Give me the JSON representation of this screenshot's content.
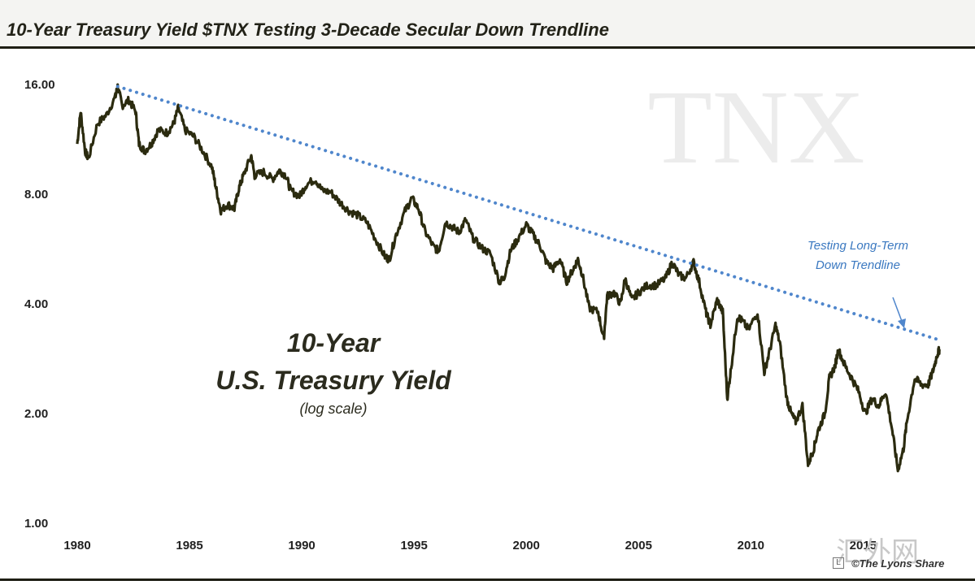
{
  "chart_data": {
    "type": "line",
    "title": "10-Year Treasury Yield $TNX Testing 3-Decade Secular Down Trendline",
    "y_scale": "log",
    "ylim": [
      1.0,
      18.0
    ],
    "xlim": [
      1980,
      2018.5
    ],
    "x_ticks": [
      "1980",
      "1985",
      "1990",
      "1995",
      "2000",
      "2005",
      "2010",
      "2015"
    ],
    "y_ticks": [
      "1.00",
      "2.00",
      "4.00",
      "8.00",
      "16.00"
    ],
    "watermark": "TNX",
    "series": [
      {
        "name": "10-Year U.S. Treasury Yield",
        "x": [
          1980.0,
          1980.15,
          1980.35,
          1980.5,
          1980.9,
          1981.3,
          1981.7,
          1981.8,
          1982.0,
          1982.3,
          1982.6,
          1982.75,
          1983.0,
          1983.3,
          1983.6,
          1984.0,
          1984.3,
          1984.5,
          1984.8,
          1985.2,
          1985.6,
          1986.0,
          1986.2,
          1986.4,
          1986.7,
          1987.0,
          1987.2,
          1987.4,
          1987.75,
          1987.9,
          1988.3,
          1988.7,
          1989.0,
          1989.3,
          1989.5,
          1989.9,
          1990.2,
          1990.6,
          1990.9,
          1991.3,
          1991.7,
          1992.1,
          1992.5,
          1992.9,
          1993.3,
          1993.7,
          1993.9,
          1994.2,
          1994.6,
          1994.9,
          1995.2,
          1995.5,
          1995.9,
          1996.1,
          1996.4,
          1996.7,
          1997.0,
          1997.3,
          1997.6,
          1998.0,
          1998.4,
          1998.8,
          1999.0,
          1999.3,
          1999.6,
          2000.0,
          2000.3,
          2000.6,
          2000.9,
          2001.2,
          2001.5,
          2001.8,
          2002.1,
          2002.3,
          2002.5,
          2002.8,
          2003.2,
          2003.45,
          2003.6,
          2003.9,
          2004.2,
          2004.4,
          2004.7,
          2005.0,
          2005.4,
          2005.8,
          2006.2,
          2006.5,
          2006.8,
          2007.1,
          2007.45,
          2007.7,
          2008.0,
          2008.2,
          2008.5,
          2008.75,
          2008.95,
          2009.1,
          2009.4,
          2009.6,
          2009.9,
          2010.3,
          2010.6,
          2010.8,
          2011.1,
          2011.3,
          2011.6,
          2011.8,
          2012.0,
          2012.3,
          2012.55,
          2012.8,
          2013.0,
          2013.3,
          2013.5,
          2013.75,
          2013.9,
          2014.2,
          2014.5,
          2014.8,
          2015.1,
          2015.4,
          2015.7,
          2016.0,
          2016.3,
          2016.55,
          2016.8,
          2016.95,
          2017.3,
          2017.6,
          2017.9,
          2018.1,
          2018.3,
          2018.4
        ],
        "values": [
          11.0,
          13.5,
          10.5,
          10.0,
          12.5,
          13.2,
          14.8,
          15.8,
          14.0,
          14.5,
          13.5,
          11.0,
          10.5,
          11.0,
          12.0,
          11.8,
          12.5,
          13.8,
          12.0,
          11.5,
          10.5,
          9.5,
          8.2,
          7.2,
          7.5,
          7.3,
          8.3,
          9.0,
          10.2,
          9.0,
          9.2,
          8.8,
          9.3,
          9.0,
          8.2,
          7.9,
          8.5,
          8.8,
          8.2,
          8.1,
          7.6,
          7.2,
          7.0,
          6.7,
          6.0,
          5.4,
          5.3,
          6.2,
          7.2,
          7.8,
          7.3,
          6.3,
          5.7,
          5.6,
          6.7,
          6.5,
          6.3,
          6.8,
          6.1,
          5.7,
          5.5,
          4.6,
          4.7,
          5.6,
          6.0,
          6.6,
          6.2,
          5.8,
          5.2,
          5.0,
          5.3,
          4.6,
          5.0,
          5.3,
          4.8,
          3.9,
          3.8,
          3.2,
          4.2,
          4.3,
          4.0,
          4.7,
          4.1,
          4.3,
          4.5,
          4.5,
          4.7,
          5.2,
          4.8,
          4.7,
          5.2,
          4.6,
          3.8,
          3.5,
          4.1,
          3.8,
          2.2,
          2.6,
          3.7,
          3.6,
          3.4,
          3.8,
          2.6,
          2.9,
          3.5,
          3.1,
          2.2,
          2.0,
          1.9,
          2.1,
          1.45,
          1.6,
          1.8,
          2.0,
          2.5,
          2.7,
          3.0,
          2.7,
          2.5,
          2.3,
          2.0,
          2.2,
          2.1,
          2.3,
          1.8,
          1.4,
          1.6,
          1.9,
          2.5,
          2.4,
          2.4,
          2.6,
          2.9,
          3.0
        ]
      },
      {
        "name": "Long-Term Down Trendline",
        "style": "dotted",
        "x": [
          1981.8,
          2018.5
        ],
        "values": [
          15.8,
          3.17
        ]
      }
    ],
    "labels": {
      "main_line1": "10-Year",
      "main_line2": "U.S. Treasury Yield",
      "main_line3": "(log scale)",
      "note_line1": "Testing Long-Term",
      "note_line2": "Down Trendline"
    }
  },
  "credit": "©The Lyons Share",
  "watermark_cn": "汇外网",
  "logo_char": "L",
  "colors": {
    "series": "#2b2b0f",
    "trend": "#4f86cc",
    "accent_text": "#3a78c0",
    "watermark": "#ececec"
  }
}
